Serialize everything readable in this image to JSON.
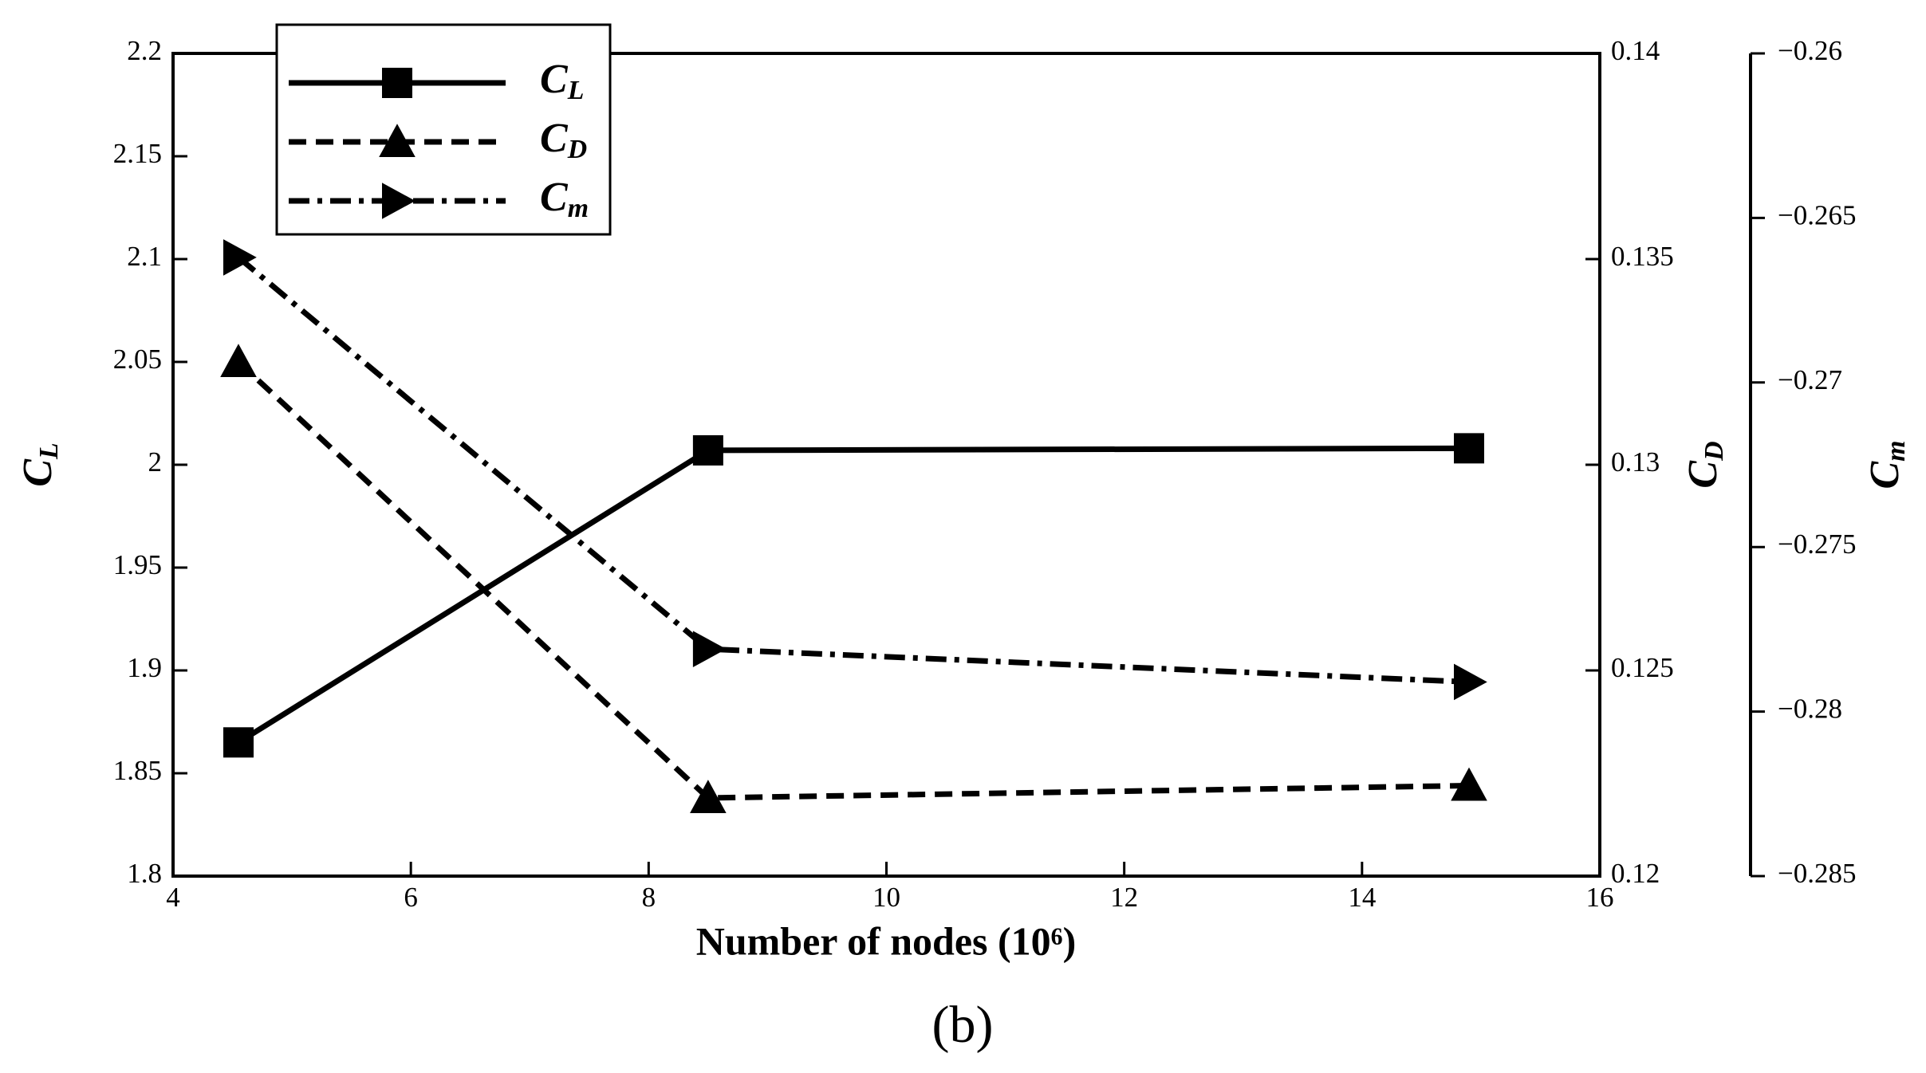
{
  "chart_data": {
    "type": "line",
    "x_label": "Number of nodes (10⁶)",
    "y_label": "CL",
    "y2_label": "CD",
    "y3_label": "Cm",
    "caption": "(b)",
    "x": [
      4.55,
      8.5,
      14.9
    ],
    "xlim": [
      4,
      16
    ],
    "xticks": [
      4,
      6,
      8,
      10,
      12,
      14,
      16
    ],
    "ylim": [
      1.8,
      2.2
    ],
    "yticks": [
      1.8,
      1.85,
      1.9,
      1.95,
      2,
      2.05,
      2.1,
      2.15,
      2.2
    ],
    "y2lim": [
      0.12,
      0.14
    ],
    "y2ticks": [
      0.12,
      0.125,
      0.13,
      0.135,
      0.14
    ],
    "y3lim": [
      -0.285,
      -0.26
    ],
    "y3ticks": [
      {
        "value": -0.285,
        "label": "−0.285"
      },
      {
        "value": -0.28,
        "label": "−0.28"
      },
      {
        "value": -0.275,
        "label": "−0.275"
      },
      {
        "value": -0.27,
        "label": "−0.27"
      },
      {
        "value": -0.265,
        "label": "−0.265"
      },
      {
        "value": -0.26,
        "label": "−0.26"
      }
    ],
    "legend": "upper left",
    "series": [
      {
        "name": "CL",
        "color": "#000000",
        "linestyle": "solid",
        "marker": "square",
        "axis": "y",
        "values": [
          1.865,
          2.007,
          2.008
        ]
      },
      {
        "name": "CD",
        "color": "#000000",
        "linestyle": "dashed",
        "marker": "triangle-up",
        "axis": "y2",
        "values": [
          0.1325,
          0.1219,
          0.1222
        ]
      },
      {
        "name": "Cm",
        "color": "#000000",
        "linestyle": "dashdot",
        "marker": "triangle-right",
        "axis": "y3",
        "values": [
          -0.2662,
          -0.2781,
          -0.2791
        ]
      }
    ]
  }
}
